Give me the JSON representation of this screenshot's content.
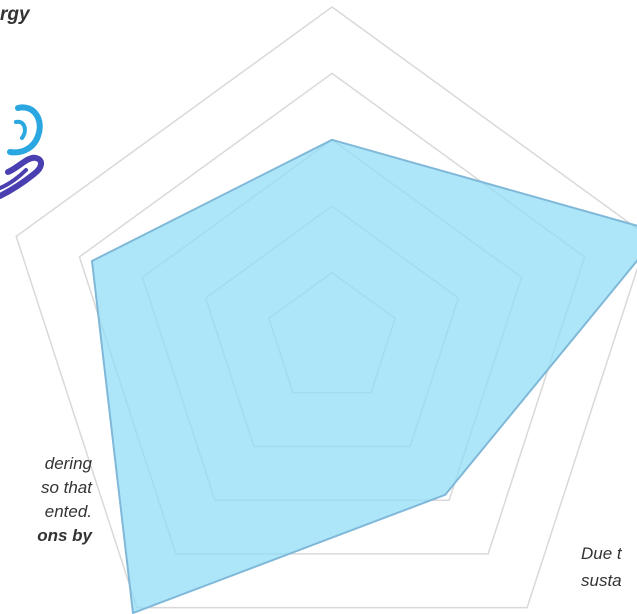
{
  "texts": {
    "top_left": "rgy",
    "left_block": [
      "dering",
      "so that",
      "ented.",
      "ons by"
    ],
    "right_block": [
      "Due t",
      "susta"
    ]
  },
  "icon": {
    "name": "hand-icon",
    "colors": [
      "#2aa6e0",
      "#4a3fb0"
    ]
  },
  "chart_data": {
    "type": "radar",
    "axes": 5,
    "rmax": 5,
    "rings": [
      1,
      2,
      3,
      4,
      5
    ],
    "grid": true,
    "series": [
      {
        "values": [
          3,
          5.2,
          2.9,
          5.1,
          3.8
        ]
      }
    ],
    "colors": {
      "fill": "#8fdcf7",
      "stroke": "#7fb8d8",
      "grid": "#d9d9d9"
    }
  }
}
